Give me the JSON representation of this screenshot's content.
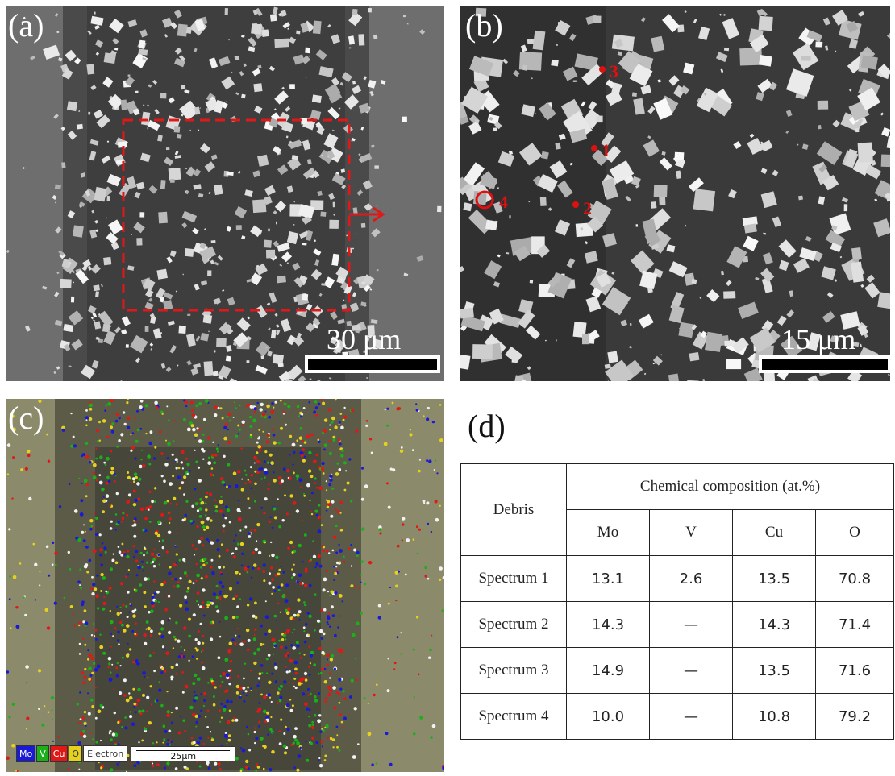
{
  "panels": {
    "a": {
      "label": "(a)",
      "scale": "30 μm"
    },
    "b": {
      "label": "(b)",
      "scale": "15 μm",
      "markers": [
        "1",
        "2",
        "3",
        "4"
      ]
    },
    "c": {
      "label": "(c)",
      "legend": [
        "Mo",
        "V",
        "Cu",
        "O"
      ],
      "legend_image": "Electron",
      "scale": "25μm"
    },
    "d": {
      "label": "(d)"
    }
  },
  "colors": {
    "Mo": "#1a1ad6",
    "V": "#19b019",
    "Cu": "#e01818",
    "O": "#e6d21e",
    "marker": "#e01010"
  },
  "table": {
    "row_header": "Debris",
    "group_header": "Chemical composition (at.%)",
    "columns": [
      "Mo",
      "V",
      "Cu",
      "O"
    ],
    "rows": [
      {
        "name": "Spectrum 1",
        "values": [
          "13.1",
          "2.6",
          "13.5",
          "70.8"
        ]
      },
      {
        "name": "Spectrum 2",
        "values": [
          "14.3",
          "—",
          "14.3",
          "71.4"
        ]
      },
      {
        "name": "Spectrum 3",
        "values": [
          "14.9",
          "—",
          "13.5",
          "71.6"
        ]
      },
      {
        "name": "Spectrum 4",
        "values": [
          "10.0",
          "—",
          "10.8",
          "79.2"
        ]
      }
    ]
  }
}
